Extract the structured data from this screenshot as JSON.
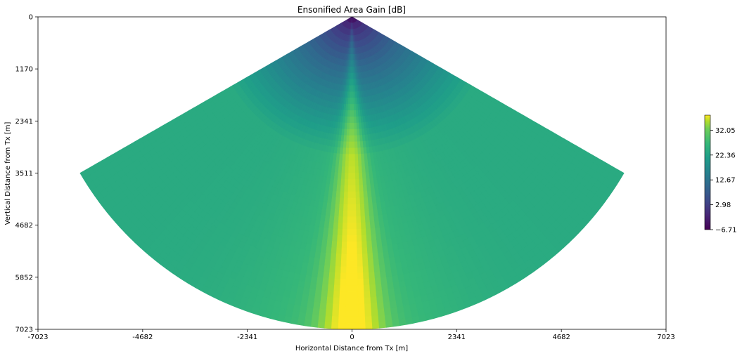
{
  "chart_data": {
    "type": "heatmap",
    "title": "Ensonified Area Gain [dB]",
    "xlabel": "Horizontal Distance from Tx [m]",
    "ylabel": "Vertical Distance from Tx [m]",
    "xlim": [
      -7023,
      7023
    ],
    "ylim": [
      7023,
      0
    ],
    "x_ticks": [
      "-7023",
      "-4682",
      "-2341",
      "0",
      "2341",
      "4682",
      "7023"
    ],
    "y_ticks": [
      "0",
      "1170",
      "2341",
      "3511",
      "4682",
      "5852",
      "7023"
    ],
    "colormap": "viridis",
    "colorbar": {
      "min": -6.71,
      "max": 37.9,
      "ticks": [
        "32.05",
        "22.36",
        "12.67",
        "2.98",
        "−6.71"
      ],
      "tick_values": [
        32.05,
        22.36,
        12.67,
        2.98,
        -6.71
      ]
    },
    "fan": {
      "max_range_m": 7023,
      "half_angle_deg": 60,
      "center_gain_db": 37.9,
      "edge_gain_db": 20.5,
      "apex_gain_db": -6.7
    },
    "grid": false
  }
}
